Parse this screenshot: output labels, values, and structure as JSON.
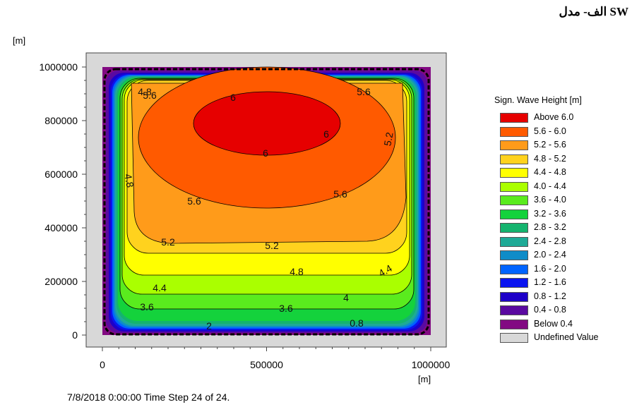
{
  "caption": "الف- مدل SW",
  "y_unit": "[m]",
  "x_unit": "[m]",
  "footer": "7/8/2018 0:00:00  Time Step 24 of 24.",
  "chart_data": {
    "type": "heatmap",
    "title": "",
    "xlabel": "[m]",
    "ylabel": "[m]",
    "xlim": [
      0,
      1000000
    ],
    "ylim": [
      0,
      1000000
    ],
    "x_ticks": [
      "0",
      "500000",
      "1000000"
    ],
    "y_ticks": [
      "0",
      "200000",
      "400000",
      "600000",
      "800000",
      "1000000"
    ],
    "legend_title": "Sign. Wave Height [m]",
    "legend_placement": "right",
    "classes": [
      {
        "label": "Above 6.0",
        "color": "#e60000"
      },
      {
        "label": "5.6 - 6.0",
        "color": "#ff5a00"
      },
      {
        "label": "5.2 - 5.6",
        "color": "#ff9b1a"
      },
      {
        "label": "4.8 - 5.2",
        "color": "#ffd21e"
      },
      {
        "label": "4.4 - 4.8",
        "color": "#ffff00"
      },
      {
        "label": "4.0 - 4.4",
        "color": "#aaff00"
      },
      {
        "label": "3.6 - 4.0",
        "color": "#5aeb1e"
      },
      {
        "label": "3.2 - 3.6",
        "color": "#14d23c"
      },
      {
        "label": "2.8 - 3.2",
        "color": "#14b46e"
      },
      {
        "label": "2.4 - 2.8",
        "color": "#1eaa96"
      },
      {
        "label": "2.0 - 2.4",
        "color": "#0f8cc8"
      },
      {
        "label": "1.6 - 2.0",
        "color": "#0064ff"
      },
      {
        "label": "1.2 - 1.6",
        "color": "#0a14f0"
      },
      {
        "label": "0.8 - 1.2",
        "color": "#1e00c8"
      },
      {
        "label": "0.4 - 0.8",
        "color": "#5a0aa0"
      },
      {
        "label": "Below 0.4",
        "color": "#820a82"
      },
      {
        "label": "Undefined Value",
        "color": "#d8d8d8"
      }
    ],
    "contour_labels": [
      "6",
      "6",
      "6",
      "5.6",
      "5.6",
      "5.6",
      "5.6",
      "5.2",
      "5.2",
      "5.2",
      "4.8",
      "4.8",
      "4.8",
      "4.4",
      "4.4",
      "4",
      "3.6",
      "3.6",
      "2",
      "0.8"
    ]
  }
}
